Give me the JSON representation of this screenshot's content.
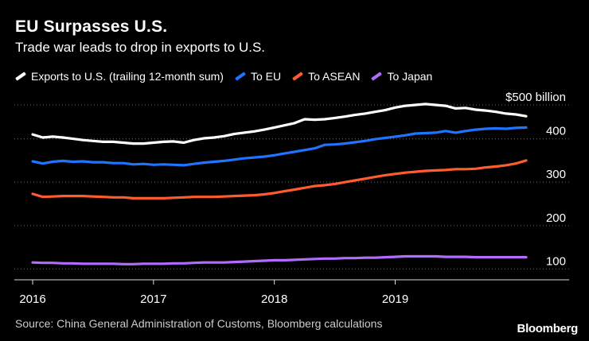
{
  "header": {
    "title": "EU Surpasses U.S.",
    "subtitle": "Trade war leads to drop in exports to U.S."
  },
  "footer": {
    "source": "Source: China General Administration of Customs, Bloomberg calculations",
    "brand": "Bloomberg"
  },
  "chart_data": {
    "type": "line",
    "title": "EU Surpasses U.S.",
    "subtitle": "Trade war leads to drop in exports to U.S.",
    "y_unit_label": "$500 billion",
    "ylim": [
      75,
      500
    ],
    "yticks": [
      100,
      200,
      300,
      400
    ],
    "xlim": [
      0,
      39
    ],
    "xticks": [
      {
        "label": "2016",
        "x": 0
      },
      {
        "label": "2017",
        "x": 12
      },
      {
        "label": "2018",
        "x": 24
      },
      {
        "label": "2019",
        "x": 36
      }
    ],
    "grid": "horizontal dotted",
    "legend_position": "top",
    "x_months_from_jan_2016": [
      0,
      1,
      2,
      3,
      4,
      5,
      6,
      7,
      8,
      9,
      10,
      11,
      12,
      13,
      14,
      15,
      16,
      17,
      18,
      19,
      20,
      21,
      22,
      23,
      24,
      25,
      26,
      27,
      28,
      29,
      30,
      31,
      32,
      33,
      34,
      35,
      36,
      37,
      38,
      39,
      40,
      41,
      42,
      43,
      44,
      45,
      46,
      47,
      48,
      49
    ],
    "series": [
      {
        "name": "Exports to U.S. (trailing 12-month sum)",
        "color": "#ffffff",
        "values": [
          410,
          403,
          405,
          403,
          400,
          397,
          395,
          393,
          393,
          391,
          389,
          389,
          391,
          393,
          394,
          391,
          397,
          401,
          403,
          406,
          411,
          414,
          417,
          421,
          426,
          431,
          436,
          445,
          444,
          445,
          448,
          451,
          455,
          458,
          462,
          466,
          472,
          476,
          478,
          480,
          478,
          476,
          470,
          471,
          467,
          465,
          462,
          458,
          456,
          452
        ]
      },
      {
        "name": "To EU",
        "color": "#1f74ff",
        "values": [
          348,
          343,
          347,
          349,
          347,
          348,
          346,
          346,
          344,
          344,
          341,
          342,
          340,
          341,
          340,
          339,
          342,
          345,
          347,
          349,
          352,
          355,
          357,
          359,
          362,
          366,
          370,
          374,
          378,
          386,
          387,
          389,
          392,
          395,
          399,
          402,
          405,
          408,
          412,
          413,
          414,
          418,
          414,
          418,
          421,
          423,
          424,
          423,
          425,
          426
        ]
      },
      {
        "name": "To ASEAN",
        "color": "#ff5c2e",
        "values": [
          273,
          266,
          267,
          268,
          268,
          268,
          267,
          266,
          265,
          265,
          263,
          263,
          263,
          263,
          264,
          265,
          266,
          266,
          266,
          267,
          268,
          269,
          270,
          272,
          275,
          279,
          283,
          287,
          291,
          293,
          296,
          300,
          304,
          308,
          312,
          316,
          319,
          322,
          324,
          326,
          327,
          328,
          330,
          330,
          331,
          334,
          336,
          339,
          343,
          350
        ]
      },
      {
        "name": "To Japan",
        "color": "#b26bff",
        "values": [
          115,
          114,
          114,
          113,
          113,
          112,
          112,
          112,
          112,
          111,
          111,
          112,
          112,
          112,
          113,
          113,
          114,
          115,
          115,
          115,
          116,
          117,
          118,
          119,
          120,
          120,
          121,
          122,
          123,
          124,
          124,
          125,
          125,
          126,
          126,
          127,
          128,
          129,
          129,
          129,
          129,
          128,
          128,
          128,
          127,
          127,
          127,
          127,
          127,
          127
        ]
      }
    ]
  }
}
